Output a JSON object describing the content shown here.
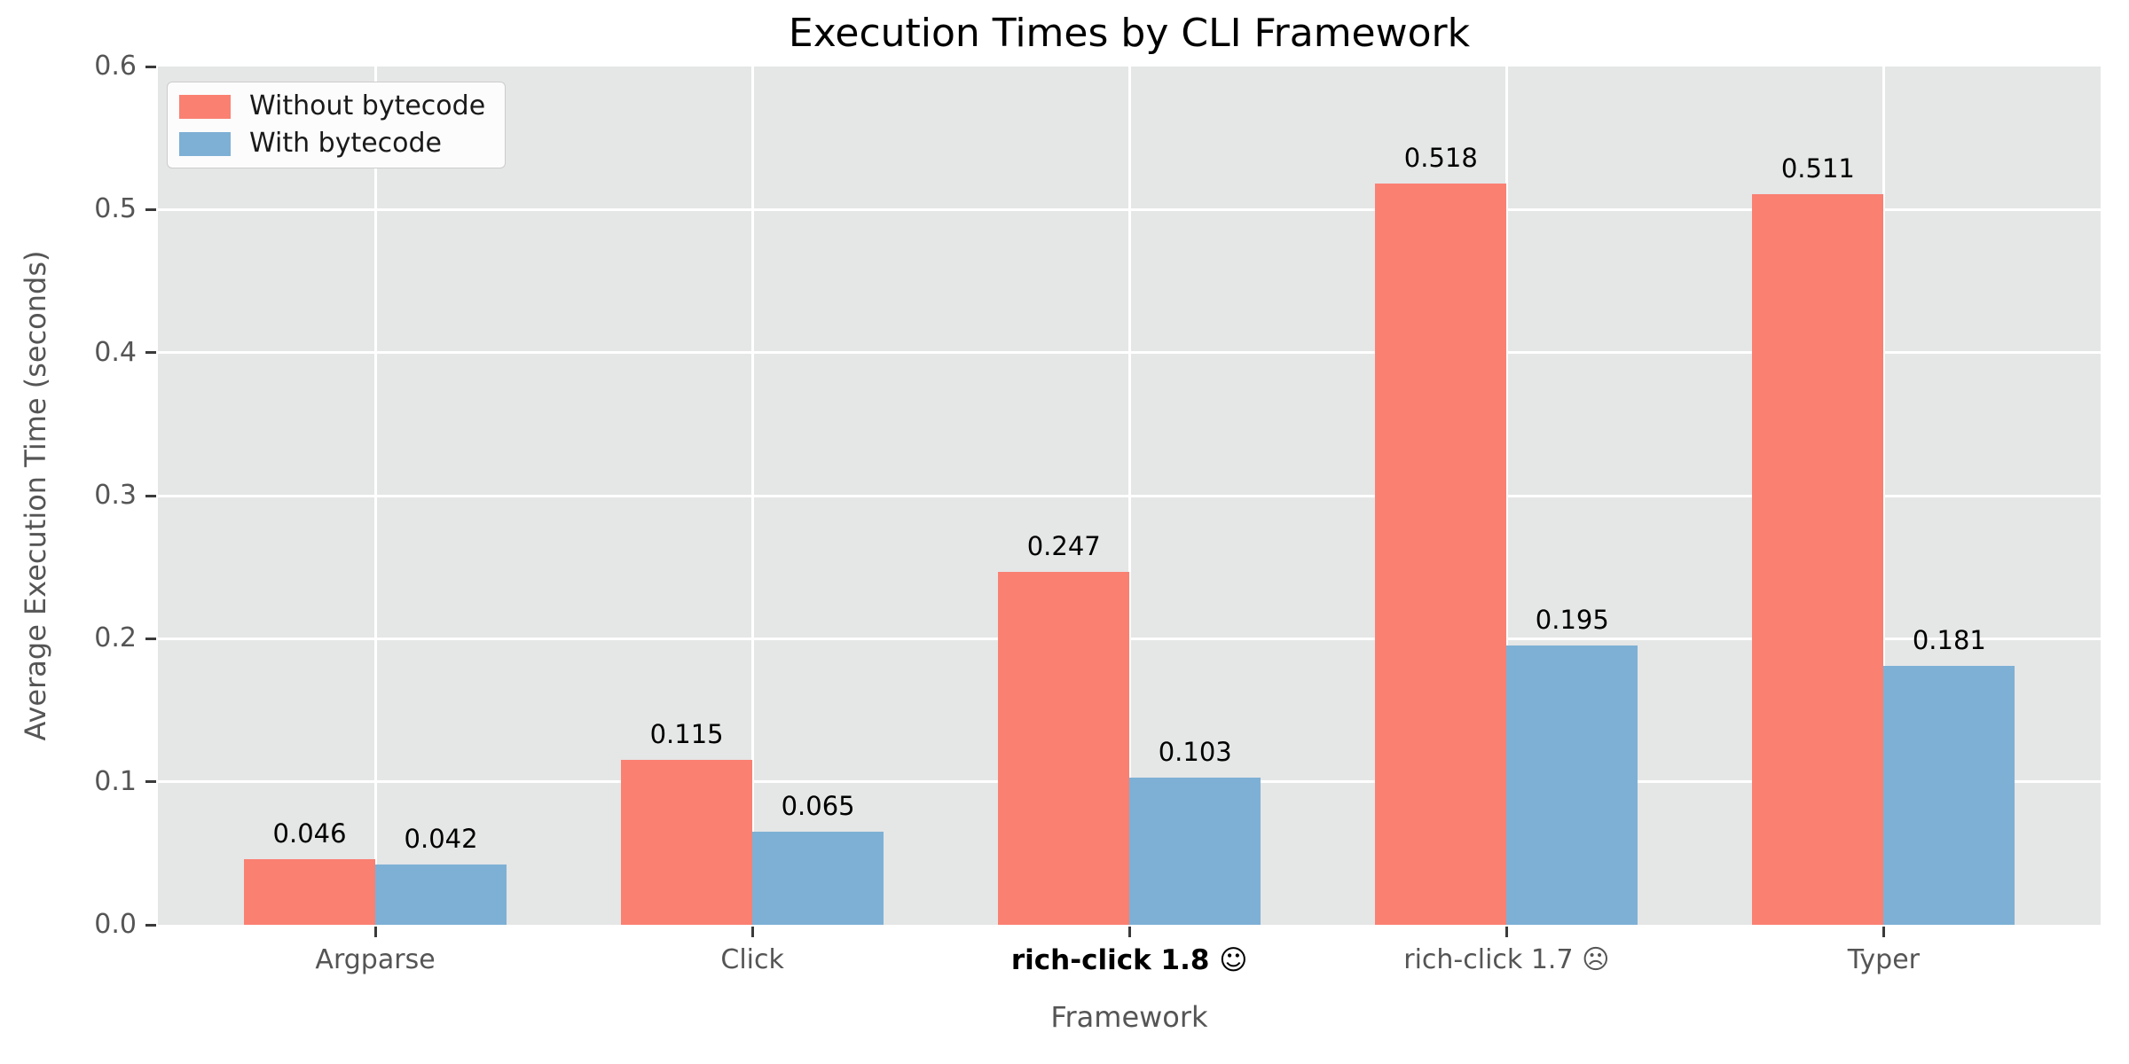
{
  "chart_data": {
    "type": "bar",
    "title": "Execution Times by CLI Framework",
    "xlabel": "Framework",
    "ylabel": "Average Execution Time (seconds)",
    "categories": [
      "Argparse",
      "Click",
      "rich-click 1.8 ☺",
      "rich-click 1.7 ☹",
      "Typer"
    ],
    "emphasized_category_index": 2,
    "series": [
      {
        "name": "Without bytecode",
        "color": "#FA8072",
        "values": [
          0.046,
          0.115,
          0.247,
          0.518,
          0.511
        ]
      },
      {
        "name": "With bytecode",
        "color": "#7EB0D5",
        "values": [
          0.042,
          0.065,
          0.103,
          0.195,
          0.181
        ]
      }
    ],
    "value_labels": [
      "0.046",
      "0.042",
      "0.115",
      "0.065",
      "0.247",
      "0.103",
      "0.518",
      "0.195",
      "0.511",
      "0.181"
    ],
    "ylim": [
      0,
      0.6
    ],
    "yticks": [
      0.0,
      0.1,
      0.2,
      0.3,
      0.4,
      0.5,
      0.6
    ],
    "ytick_labels": [
      "0.0",
      "0.1",
      "0.2",
      "0.3",
      "0.4",
      "0.5",
      "0.6"
    ],
    "grid": true,
    "legend_position": "upper-left"
  },
  "style": {
    "figure_bg": "#FFFFFF",
    "plot_bg": "#E5E6E6",
    "grid_color": "#FFFFFF",
    "tick_color": "#3A3A3A",
    "tick_label_color": "#555555",
    "axis_label_color": "#555555",
    "title_color": "#000000",
    "value_label_color": "#000000",
    "emphasized_tick_label_color": "#000000",
    "legend_bg": "#FCFCFC",
    "legend_border": "#CCCCCC",
    "legend_text_color": "#1A1A1A"
  }
}
